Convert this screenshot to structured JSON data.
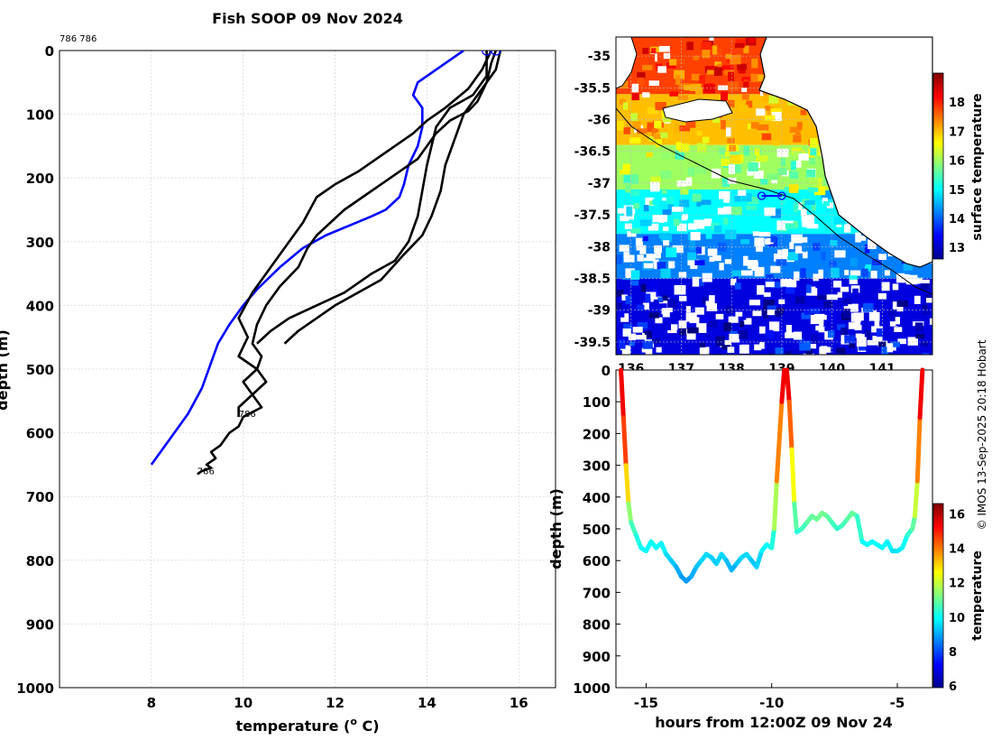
{
  "title": "Fish SOOP 09 Nov 2024",
  "tag_ids": "786 786",
  "watermark": "© IMOS 13-Sep-2025 20:18 Hobart",
  "colors": {
    "profile_black": "#000000",
    "profile_blue": "#0000ff",
    "grid": "#d9d9d9",
    "land_outline": "#000000"
  },
  "chart_data": [
    {
      "type": "line",
      "name": "temperature-depth-profile",
      "xlabel": "temperature (o C)",
      "xlabel_main": "temperature (",
      "xlabel_sup": "o",
      "xlabel_tail": " C)",
      "ylabel": "depth (m)",
      "xlim": [
        6,
        16.8
      ],
      "ylim": [
        1000,
        0
      ],
      "xticks": [
        8,
        10,
        12,
        14,
        16
      ],
      "yticks": [
        0,
        100,
        200,
        300,
        400,
        500,
        600,
        700,
        800,
        900,
        1000
      ],
      "grid": true,
      "annotations": [
        {
          "text": "786",
          "x": 9.9,
          "y": 575
        },
        {
          "text": "786",
          "x": 9.0,
          "y": 665
        }
      ],
      "series": [
        {
          "name": "climatology",
          "color": "#0000ff",
          "x": [
            14.8,
            14.5,
            14.2,
            13.8,
            13.7,
            13.9,
            13.9,
            13.8,
            13.6,
            13.5,
            13.4,
            13.1,
            12.8,
            12.3,
            11.8,
            11.3,
            10.8,
            10.3,
            10.0,
            9.7,
            9.45,
            9.3,
            9.1,
            8.8,
            8.5,
            8.0
          ],
          "y": [
            0,
            15,
            30,
            50,
            70,
            90,
            120,
            150,
            180,
            210,
            230,
            250,
            260,
            275,
            290,
            310,
            340,
            375,
            400,
            430,
            460,
            490,
            530,
            570,
            600,
            650
          ]
        },
        {
          "name": "tag-profile-1",
          "color": "#000000",
          "x": [
            15.5,
            15.4,
            15.3,
            15.1,
            14.9,
            14.5,
            14.2,
            14.0,
            13.8,
            13.4,
            13.0,
            12.6,
            12.2,
            11.9,
            11.6,
            11.4,
            11.2,
            10.8,
            10.5,
            10.3,
            10.2,
            10.4,
            10.3,
            10.5,
            10.2,
            10.4,
            10.0,
            9.9,
            9.7,
            9.6,
            9.5,
            9.3,
            9.4,
            9.2,
            9.3,
            9.1,
            9.0
          ],
          "y": [
            0,
            20,
            50,
            80,
            95,
            110,
            130,
            150,
            170,
            190,
            210,
            230,
            250,
            270,
            290,
            310,
            340,
            370,
            400,
            430,
            460,
            480,
            500,
            520,
            540,
            560,
            575,
            590,
            600,
            610,
            620,
            630,
            640,
            650,
            655,
            660,
            665
          ]
        },
        {
          "name": "tag-profile-2",
          "color": "#000000",
          "x": [
            15.4,
            15.2,
            14.9,
            14.4,
            14.0,
            13.7,
            13.3,
            12.9,
            12.5,
            12.0,
            11.6,
            11.3,
            11.0,
            10.6,
            10.2,
            9.9,
            10.1,
            9.9,
            10.3,
            10.0,
            10.2,
            9.9,
            9.9
          ],
          "y": [
            0,
            30,
            60,
            90,
            110,
            130,
            150,
            170,
            190,
            210,
            230,
            270,
            300,
            340,
            380,
            420,
            450,
            480,
            500,
            520,
            540,
            560,
            575
          ]
        },
        {
          "name": "tag-profile-3",
          "color": "#000000",
          "x": [
            15.3,
            15.3,
            15.0,
            14.5,
            14.2,
            14.0,
            13.9,
            13.8,
            13.6,
            13.3,
            12.8,
            12.2,
            11.6,
            11.0,
            10.6,
            10.3
          ],
          "y": [
            0,
            40,
            70,
            90,
            120,
            180,
            220,
            260,
            300,
            330,
            350,
            380,
            400,
            420,
            440,
            460
          ]
        },
        {
          "name": "tag-profile-4",
          "color": "#000000",
          "x": [
            15.6,
            15.5,
            15.2,
            14.8,
            14.6,
            14.4,
            14.3,
            14.1,
            13.9,
            13.5,
            13.0,
            12.5,
            12.0,
            11.6,
            11.2,
            10.9
          ],
          "y": [
            0,
            30,
            60,
            100,
            140,
            180,
            220,
            260,
            290,
            320,
            360,
            380,
            400,
            420,
            440,
            460
          ]
        }
      ]
    },
    {
      "type": "heatmap",
      "name": "sea-surface-temperature-map",
      "xticks": [
        136,
        137,
        138,
        139,
        140,
        141
      ],
      "yticks": [
        -35,
        -35.5,
        -36,
        -36.5,
        -37,
        -37.5,
        -38,
        -38.5,
        -39,
        -39.5
      ],
      "xlim": [
        135.7,
        142.0
      ],
      "ylim": [
        -39.7,
        -34.7
      ],
      "colorbar_label": "surface temperature",
      "colorbar_ticks": [
        13,
        14,
        15,
        16,
        17,
        18
      ],
      "colorbar_range": [
        12.6,
        19.0
      ],
      "track": {
        "lon": [
          138.6,
          138.8,
          139.0
        ],
        "lat": [
          -37.2,
          -37.2,
          -37.2
        ]
      },
      "bands": [
        {
          "lat_top": -34.7,
          "lat_bot": -35.6,
          "temp": 17.8
        },
        {
          "lat_top": -35.6,
          "lat_bot": -36.4,
          "temp": 17.0
        },
        {
          "lat_top": -36.4,
          "lat_bot": -37.1,
          "temp": 16.0
        },
        {
          "lat_top": -37.1,
          "lat_bot": -37.8,
          "temp": 15.0
        },
        {
          "lat_top": -37.8,
          "lat_bot": -38.5,
          "temp": 14.2
        },
        {
          "lat_top": -38.5,
          "lat_bot": -39.7,
          "temp": 13.2
        }
      ]
    },
    {
      "type": "line",
      "name": "depth-time-series",
      "xlabel": "hours from 12:00Z 09 Nov 24",
      "ylabel": "depth (m)",
      "xlim": [
        -16.2,
        -3.6
      ],
      "ylim": [
        1000,
        0
      ],
      "xticks": [
        -15,
        -10,
        -5
      ],
      "yticks": [
        0,
        100,
        200,
        300,
        400,
        500,
        600,
        700,
        800,
        900,
        1000
      ],
      "colorbar_label": "temperature",
      "colorbar_ticks": [
        6,
        8,
        10,
        12,
        14,
        16
      ],
      "colorbar_range": [
        5.9,
        16.6
      ],
      "series": [
        {
          "name": "dive-1",
          "hours": [
            -16.0,
            -15.9,
            -15.8,
            -15.7,
            -15.6,
            -15.4,
            -15.2,
            -15.0,
            -14.8,
            -14.6,
            -14.4,
            -14.2,
            -14.0,
            -13.8,
            -13.6,
            -13.4,
            -13.2,
            -13.0,
            -12.8,
            -12.6,
            -12.4,
            -12.2,
            -12.0,
            -11.8,
            -11.6,
            -11.4,
            -11.2,
            -11.0,
            -10.8,
            -10.6,
            -10.4,
            -10.2,
            -10.0,
            -9.9,
            -9.8,
            -9.6,
            -9.5
          ],
          "depth": [
            0,
            150,
            300,
            420,
            480,
            520,
            560,
            570,
            540,
            560,
            545,
            580,
            600,
            620,
            650,
            665,
            650,
            620,
            600,
            580,
            590,
            610,
            580,
            600,
            630,
            610,
            590,
            580,
            600,
            620,
            570,
            550,
            560,
            500,
            350,
            100,
            0
          ],
          "temp": [
            15.6,
            15.2,
            14.0,
            12.0,
            10.8,
            10.4,
            10.0,
            9.8,
            10.1,
            9.9,
            10.0,
            9.6,
            9.4,
            9.2,
            8.9,
            8.8,
            8.9,
            9.2,
            9.4,
            9.6,
            9.5,
            9.3,
            9.6,
            9.4,
            9.0,
            9.2,
            9.5,
            9.6,
            9.4,
            9.2,
            9.7,
            10.0,
            9.9,
            10.6,
            12.8,
            15.0,
            15.8
          ]
        },
        {
          "name": "dive-2",
          "hours": [
            -9.4,
            -9.3,
            -9.2,
            -9.1,
            -9.0,
            -8.8,
            -8.6,
            -8.4,
            -8.2,
            -8.0,
            -7.8,
            -7.6,
            -7.4,
            -7.2,
            -7.0,
            -6.8,
            -6.6,
            -6.4,
            -6.2,
            -6.0,
            -5.8,
            -5.6,
            -5.4,
            -5.2,
            -5.0,
            -4.8,
            -4.6,
            -4.4,
            -4.3,
            -4.2,
            -4.1,
            -4.0
          ],
          "depth": [
            0,
            100,
            250,
            420,
            510,
            500,
            480,
            460,
            470,
            450,
            460,
            480,
            500,
            490,
            470,
            450,
            460,
            540,
            550,
            540,
            550,
            560,
            540,
            570,
            570,
            560,
            520,
            500,
            460,
            350,
            150,
            0
          ],
          "temp": [
            15.8,
            15.0,
            13.5,
            11.5,
            10.2,
            10.4,
            10.8,
            11.0,
            10.9,
            11.2,
            11.0,
            10.7,
            10.4,
            10.5,
            10.8,
            11.0,
            10.9,
            10.0,
            9.9,
            10.0,
            9.9,
            9.8,
            10.0,
            9.6,
            9.6,
            9.8,
            10.3,
            10.6,
            11.2,
            12.8,
            15.0,
            15.8
          ]
        }
      ]
    }
  ]
}
